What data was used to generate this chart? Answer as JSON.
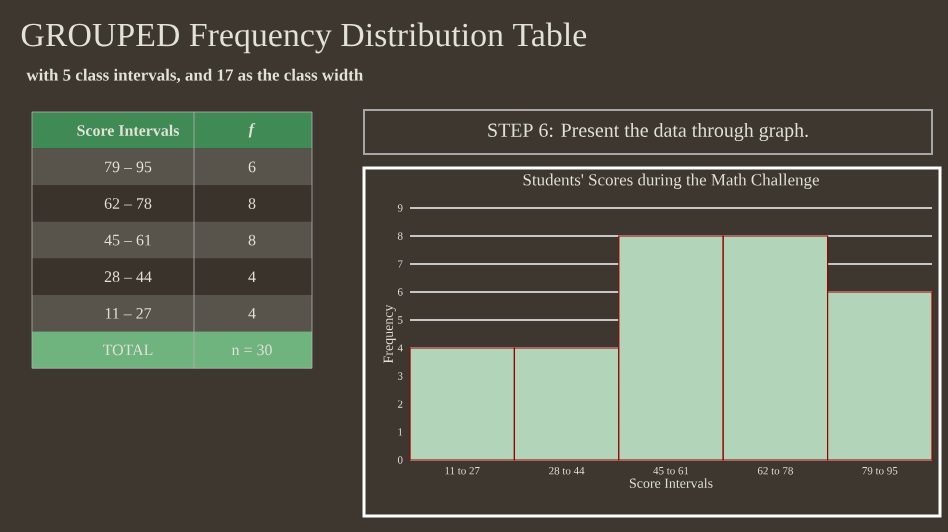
{
  "chart_data": {
    "type": "bar",
    "title": "Students' Scores during the Math Challenge",
    "subtitle": "with 5 class intervals, and 17 as the class width",
    "xlabel": "Score Intervals",
    "ylabel": "Frequency",
    "categories": [
      "11 to 27",
      "28 to 44",
      "45 to 61",
      "62 to 78",
      "79 to 95"
    ],
    "values": [
      4,
      4,
      8,
      8,
      6
    ],
    "color": "#b2d5ba",
    "ylim": [
      0,
      9
    ],
    "yticks": [
      0,
      1,
      2,
      3,
      4,
      5,
      6,
      7,
      8,
      9
    ],
    "grid": "y",
    "annotations": [
      "GROUPED Frequency Distribution Table",
      "STEP 6: Present the data through graph.",
      "Score Intervals",
      "*f*",
      "79 – 95",
      "6",
      "62 – 78",
      "8",
      "45 – 61",
      "8",
      "28 – 44",
      "4",
      "11 – 27",
      "4",
      "TOTAL",
      "n = 30"
    ]
  }
}
